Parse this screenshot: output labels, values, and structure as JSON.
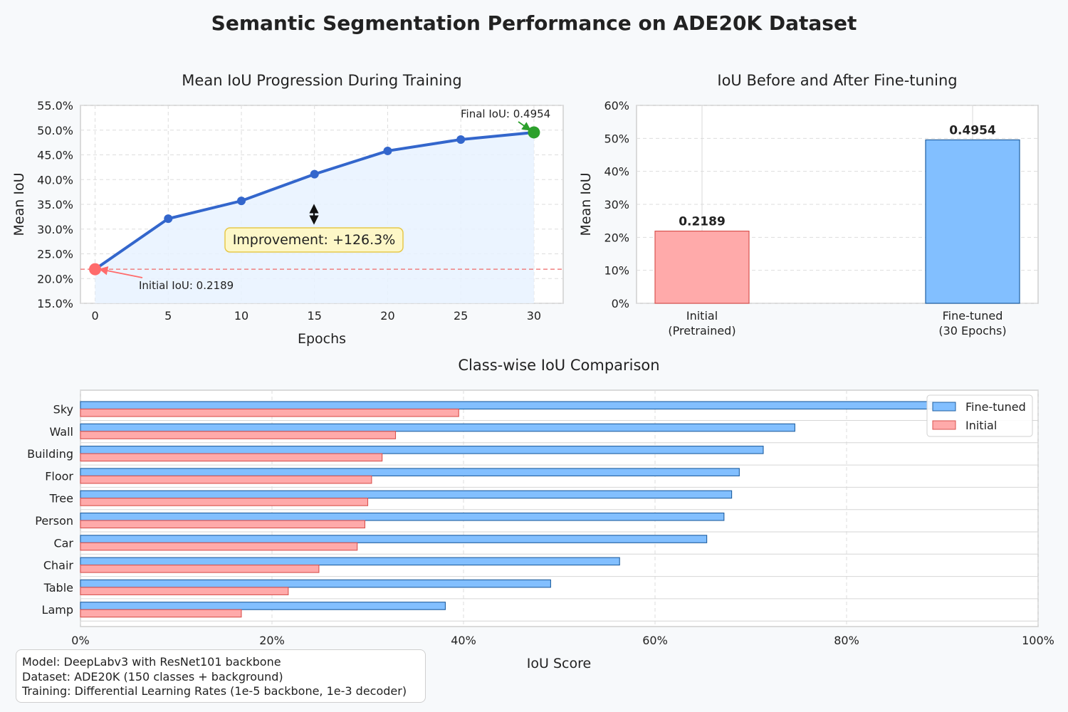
{
  "title": "Semantic Segmentation Performance on ADE20K Dataset",
  "colors": {
    "line": "#3366cc",
    "initial": "#ff6b6b",
    "final": "#2ca02c",
    "finetuned_bar": "#82bfff",
    "finetuned_edge": "#1f5fa0",
    "initial_bar": "#ffaaaa",
    "initial_edge": "#d9534f",
    "annotation_bg": "#fdf7c7",
    "annotation_edge": "#e6c84a"
  },
  "chart_data": [
    {
      "type": "line",
      "title": "Mean IoU Progression During Training",
      "xlabel": "Epochs",
      "ylabel": "Mean IoU",
      "x": [
        0,
        5,
        10,
        15,
        20,
        25,
        30
      ],
      "y": [
        0.2189,
        0.321,
        0.357,
        0.411,
        0.458,
        0.481,
        0.4954
      ],
      "xlim": [
        -1,
        32
      ],
      "ylim": [
        0.15,
        0.55
      ],
      "xticks": [
        "0",
        "5",
        "10",
        "15",
        "20",
        "25",
        "30"
      ],
      "yticks": [
        "15.0%",
        "20.0%",
        "25.0%",
        "30.0%",
        "35.0%",
        "40.0%",
        "45.0%",
        "50.0%",
        "55.0%"
      ],
      "baseline": 0.2189,
      "grid": true,
      "annotations": {
        "initial": "Initial IoU: 0.2189",
        "final": "Final IoU: 0.4954",
        "improvement": "Improvement: +126.3%"
      }
    },
    {
      "type": "bar",
      "title": "IoU Before and After Fine-tuning",
      "ylabel": "Mean IoU",
      "categories": [
        [
          "Initial",
          "(Pretrained)"
        ],
        [
          "Fine-tuned",
          "(30 Epochs)"
        ]
      ],
      "values": [
        0.2189,
        0.4954
      ],
      "value_labels": [
        "0.2189",
        "0.4954"
      ],
      "ylim": [
        0,
        0.6
      ],
      "yticks": [
        "0%",
        "10%",
        "20%",
        "30%",
        "40%",
        "50%",
        "60%"
      ],
      "grid": true
    },
    {
      "type": "bar",
      "orientation": "horizontal",
      "title": "Class-wise IoU Comparison",
      "xlabel": "IoU Score",
      "categories": [
        "Sky",
        "Wall",
        "Building",
        "Floor",
        "Tree",
        "Person",
        "Car",
        "Chair",
        "Table",
        "Lamp"
      ],
      "series": [
        {
          "name": "Fine-tuned",
          "values": [
            0.89,
            0.746,
            0.713,
            0.688,
            0.68,
            0.672,
            0.654,
            0.563,
            0.491,
            0.381
          ]
        },
        {
          "name": "Initial",
          "values": [
            0.395,
            0.329,
            0.315,
            0.304,
            0.3,
            0.297,
            0.289,
            0.249,
            0.217,
            0.168
          ]
        }
      ],
      "xlim": [
        0,
        1
      ],
      "xticks": [
        "0%",
        "20%",
        "40%",
        "60%",
        "80%",
        "100%"
      ],
      "legend": "top-right",
      "grid": true
    }
  ],
  "info": {
    "model": "Model: DeepLabv3 with ResNet101 backbone",
    "dataset": "Dataset: ADE20K (150 classes + background)",
    "training": "Training: Differential Learning Rates (1e-5 backbone, 1e-3 decoder)"
  }
}
